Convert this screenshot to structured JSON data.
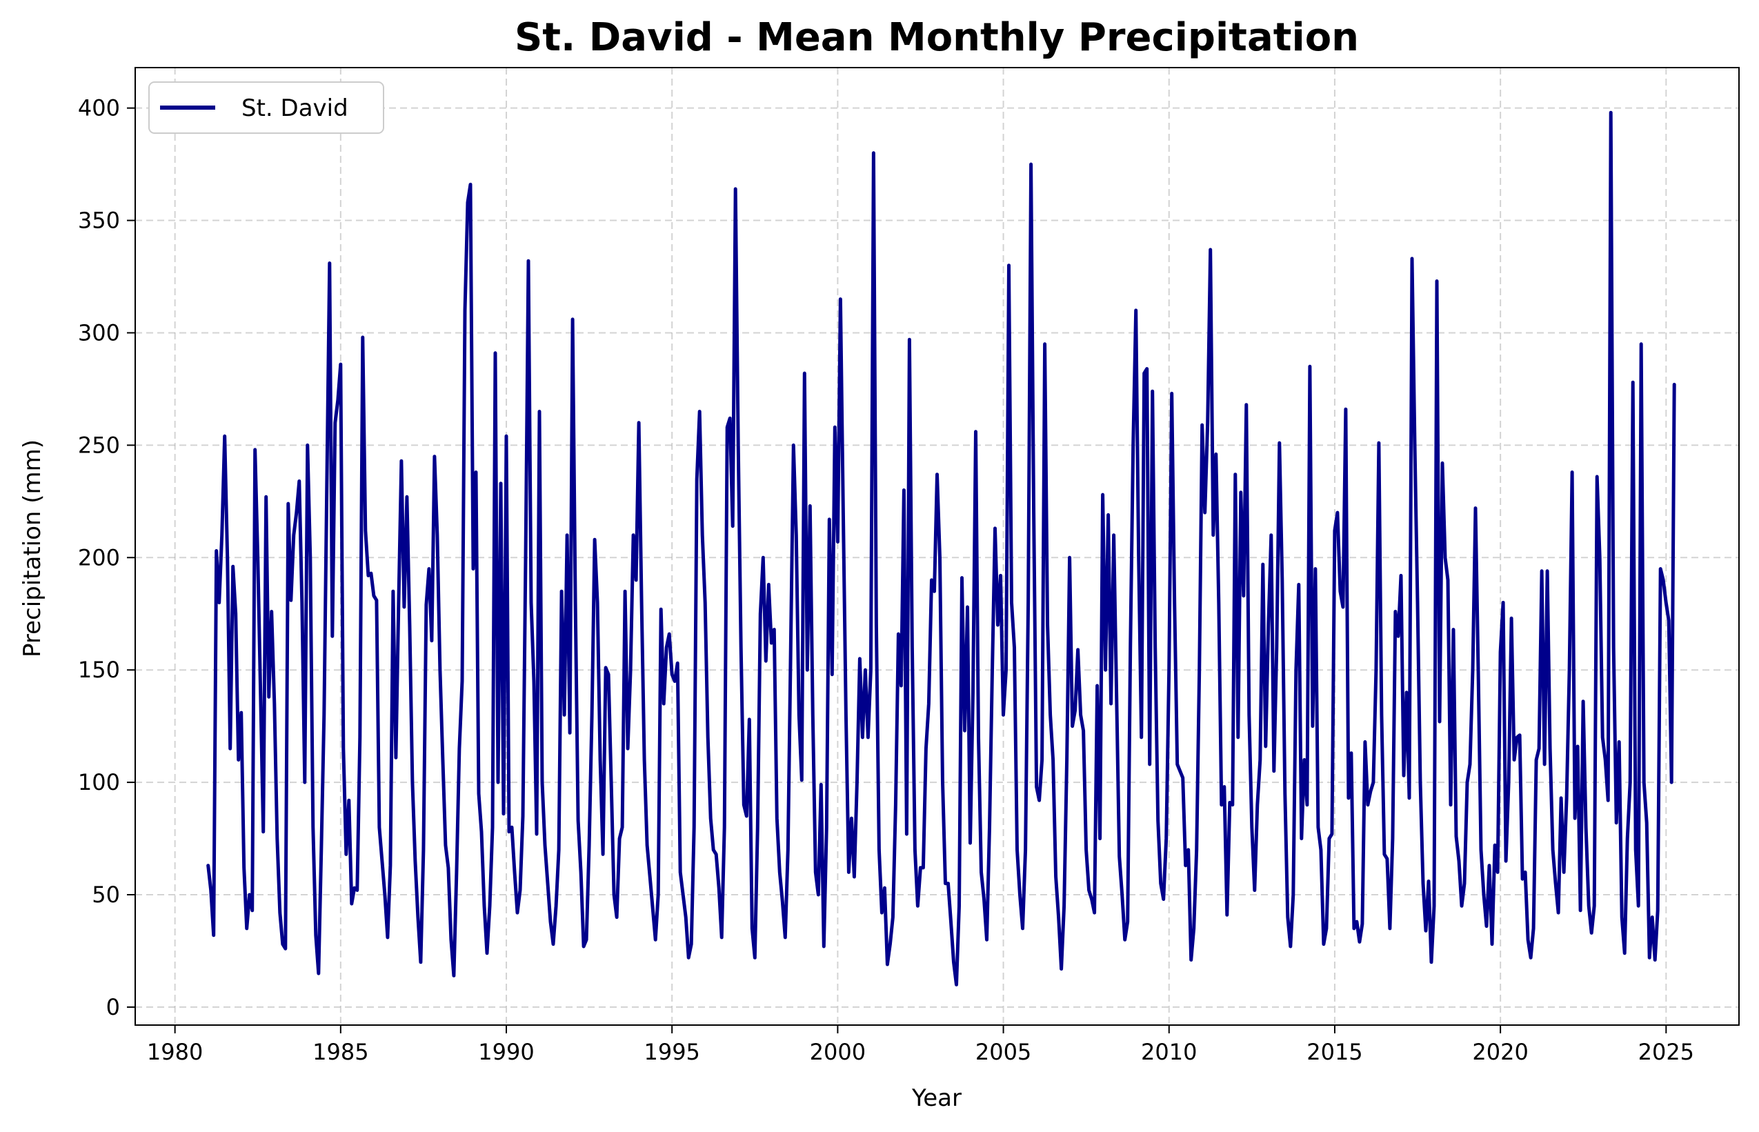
{
  "chart_data": {
    "type": "line",
    "title": "St. David - Mean Monthly Precipitation",
    "xlabel": "Year",
    "ylabel": "Precipitation (mm)",
    "xlim": [
      1978.8,
      2027.2
    ],
    "ylim": [
      -8,
      418
    ],
    "xticks": [
      1980,
      1985,
      1990,
      1995,
      2000,
      2005,
      2010,
      2015,
      2020,
      2025
    ],
    "yticks": [
      0,
      50,
      100,
      150,
      200,
      250,
      300,
      350,
      400
    ],
    "grid": true,
    "legend": "top-left",
    "series": [
      {
        "name": "St. David",
        "color": "#00008B",
        "x_start": 1981.0,
        "x_step": 0.08333,
        "values": [
          63,
          52,
          32,
          203,
          180,
          210,
          254,
          200,
          115,
          196,
          175,
          110,
          131,
          62,
          35,
          50,
          43,
          248,
          200,
          140,
          78,
          227,
          138,
          176,
          135,
          75,
          42,
          28,
          26,
          224,
          181,
          210,
          220,
          234,
          180,
          100,
          250,
          200,
          80,
          32,
          15,
          70,
          130,
          232,
          331,
          165,
          260,
          270,
          286,
          115,
          68,
          92,
          46,
          53,
          52,
          120,
          298,
          212,
          192,
          193,
          183,
          181,
          80,
          65,
          50,
          31,
          63,
          185,
          111,
          180,
          243,
          178,
          227,
          170,
          100,
          65,
          40,
          20,
          70,
          179,
          195,
          163,
          245,
          210,
          150,
          110,
          72,
          62,
          30,
          14,
          60,
          115,
          145,
          310,
          358,
          366,
          195,
          238,
          95,
          78,
          45,
          24,
          45,
          80,
          291,
          100,
          233,
          86,
          254,
          78,
          80,
          60,
          42,
          52,
          85,
          200,
          332,
          180,
          145,
          77,
          265,
          100,
          72,
          55,
          38,
          28,
          45,
          70,
          185,
          130,
          210,
          122,
          306,
          180,
          83,
          60,
          27,
          30,
          72,
          130,
          208,
          180,
          110,
          68,
          151,
          148,
          100,
          50,
          40,
          75,
          80,
          185,
          115,
          150,
          210,
          190,
          260,
          180,
          110,
          72,
          58,
          44,
          30,
          50,
          177,
          135,
          160,
          166,
          148,
          145,
          153,
          60,
          50,
          40,
          22,
          28,
          80,
          235,
          265,
          210,
          180,
          120,
          84,
          70,
          68,
          53,
          31,
          80,
          258,
          262,
          214,
          364,
          250,
          160,
          90,
          85,
          128,
          35,
          22,
          80,
          175,
          200,
          154,
          188,
          162,
          168,
          84,
          60,
          47,
          31,
          70,
          160,
          250,
          210,
          130,
          101,
          282,
          150,
          223,
          130,
          60,
          50,
          99,
          27,
          80,
          217,
          148,
          258,
          207,
          315,
          220,
          130,
          60,
          84,
          58,
          100,
          155,
          120,
          150,
          120,
          150,
          380,
          170,
          70,
          42,
          53,
          19,
          28,
          40,
          90,
          166,
          143,
          230,
          77,
          297,
          160,
          70,
          45,
          62,
          62,
          115,
          135,
          190,
          185,
          237,
          200,
          100,
          55,
          55,
          38,
          20,
          10,
          45,
          191,
          123,
          178,
          73,
          140,
          256,
          120,
          60,
          48,
          30,
          80,
          150,
          213,
          170,
          192,
          130,
          150,
          330,
          180,
          160,
          70,
          50,
          35,
          70,
          180,
          375,
          220,
          98,
          92,
          110,
          295,
          170,
          130,
          110,
          58,
          40,
          17,
          45,
          110,
          200,
          125,
          132,
          159,
          130,
          123,
          70,
          52,
          48,
          42,
          143,
          75,
          228,
          150,
          219,
          135,
          210,
          140,
          67,
          50,
          30,
          38,
          160,
          250,
          310,
          200,
          120,
          282,
          284,
          108,
          274,
          160,
          83,
          55,
          48,
          75,
          150,
          273,
          180,
          108,
          105,
          102,
          63,
          70,
          21,
          35,
          70,
          150,
          259,
          220,
          260,
          337,
          210,
          246,
          180,
          90,
          98,
          41,
          91,
          90,
          237,
          120,
          229,
          183,
          268,
          130,
          80,
          52,
          90,
          110,
          197,
          116,
          170,
          210,
          105,
          160,
          251,
          190,
          95,
          40,
          27,
          50,
          150,
          188,
          75,
          110,
          90,
          285,
          125,
          195,
          80,
          70,
          28,
          35,
          75,
          77,
          212,
          220,
          185,
          178,
          266,
          93,
          113,
          35,
          38,
          29,
          37,
          118,
          90,
          96,
          100,
          150,
          251,
          130,
          68,
          66,
          35,
          75,
          176,
          165,
          192,
          103,
          140,
          93,
          333,
          250,
          180,
          100,
          55,
          34,
          56,
          20,
          45,
          323,
          127,
          242,
          200,
          190,
          90,
          168,
          76,
          65,
          45,
          55,
          100,
          108,
          150,
          222,
          150,
          70,
          50,
          36,
          63,
          28,
          72,
          60,
          158,
          180,
          65,
          100,
          173,
          110,
          120,
          121,
          57,
          60,
          30,
          22,
          35,
          110,
          115,
          194,
          108,
          194,
          115,
          70,
          55,
          42,
          93,
          60,
          93,
          150,
          238,
          84,
          116,
          43,
          136,
          80,
          45,
          33,
          45,
          236,
          200,
          120,
          110,
          92,
          398,
          160,
          82,
          118,
          40,
          24,
          75,
          100,
          278,
          70,
          45,
          295,
          100,
          82,
          22,
          40,
          21,
          43,
          195,
          190,
          180,
          172,
          100,
          277
        ]
      }
    ]
  }
}
